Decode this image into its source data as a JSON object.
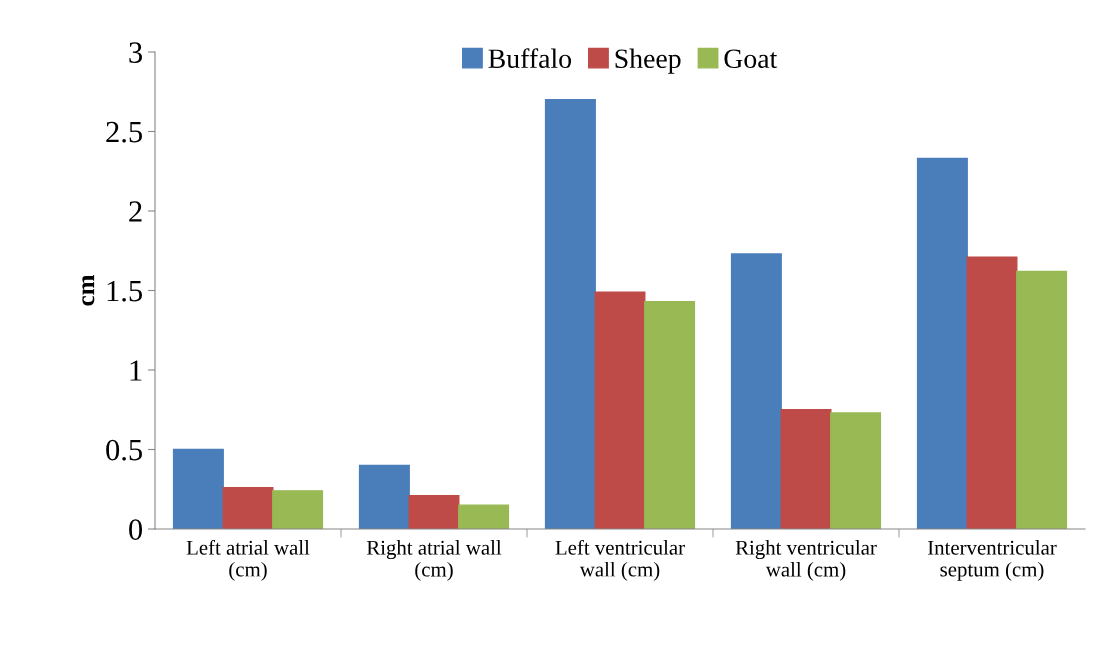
{
  "chart_data": {
    "type": "bar",
    "ylabel": "cm",
    "categories": [
      "Left atrial wall\n(cm)",
      "Right atrial wall\n(cm)",
      "Left ventricular\nwall (cm)",
      "Right ventricular\nwall (cm)",
      "Interventricular\nseptum (cm)"
    ],
    "series": [
      {
        "name": "Buffalo",
        "color": "#4a7ebb",
        "values": [
          0.5,
          0.4,
          2.7,
          1.73,
          2.33
        ]
      },
      {
        "name": "Sheep",
        "color": "#be4b48",
        "values": [
          0.26,
          0.21,
          1.49,
          0.75,
          1.71
        ]
      },
      {
        "name": "Goat",
        "color": "#98b954",
        "values": [
          0.24,
          0.15,
          1.43,
          0.73,
          1.62
        ]
      }
    ],
    "ylim": [
      0,
      3
    ],
    "yticks": [
      0,
      0.5,
      1,
      1.5,
      2,
      2.5,
      3
    ],
    "grid": false,
    "legend": "top"
  }
}
